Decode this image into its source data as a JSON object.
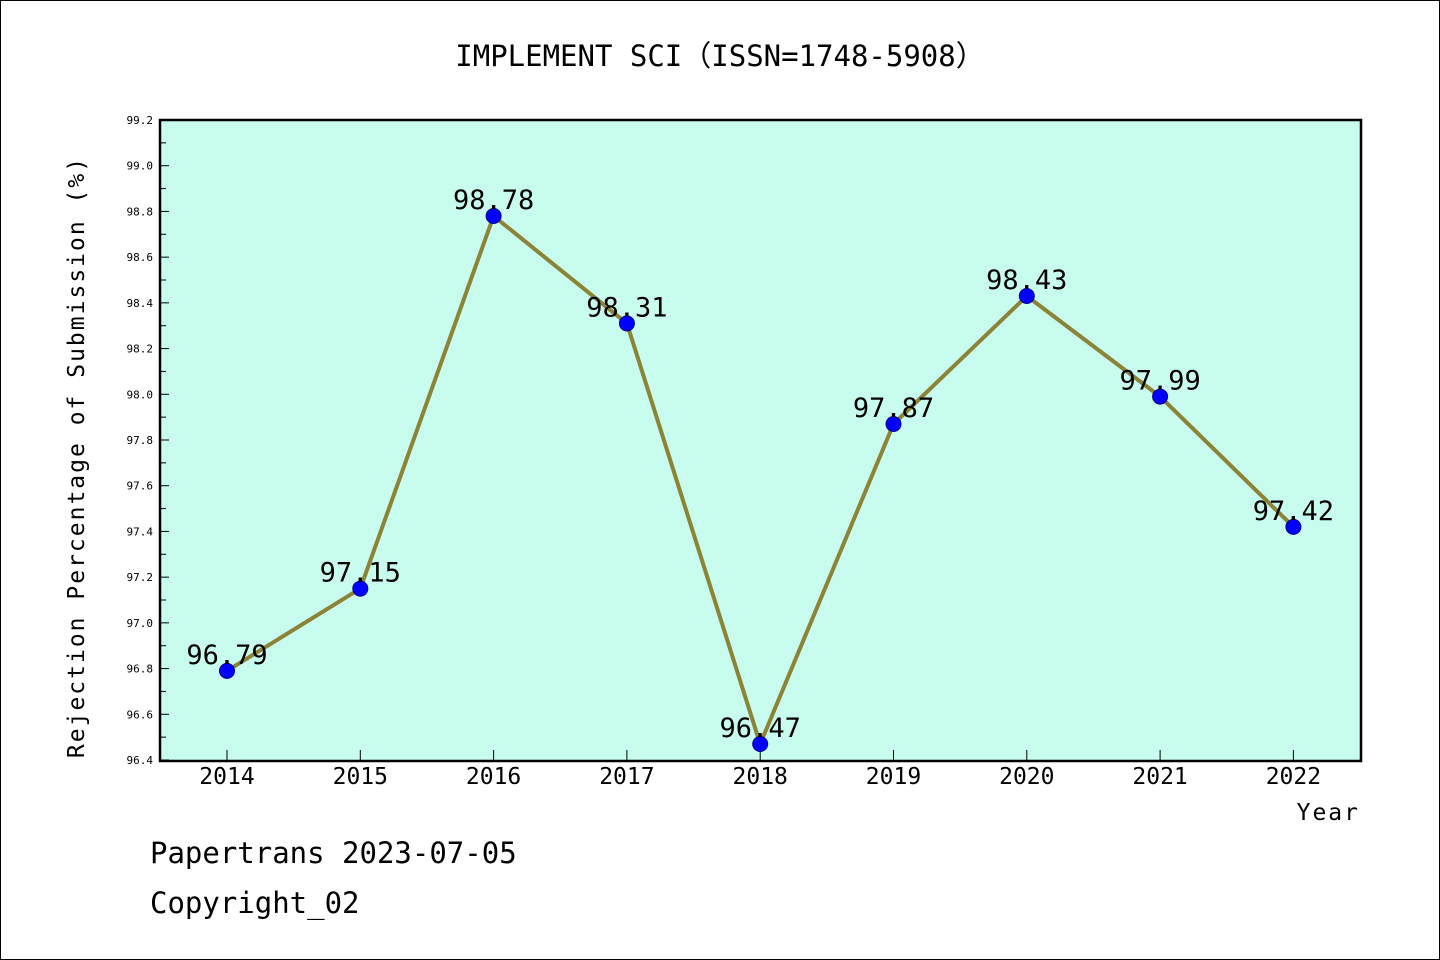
{
  "chart_data": {
    "type": "line",
    "title": "IMPLEMENT SCI（ISSN=1748-5908）",
    "xlabel": "Year",
    "ylabel": "Rejection Percentage of Submission (%)",
    "categories": [
      "2014",
      "2015",
      "2016",
      "2017",
      "2018",
      "2019",
      "2020",
      "2021",
      "2022"
    ],
    "values": [
      96.79,
      97.15,
      98.78,
      98.31,
      96.47,
      97.87,
      98.43,
      97.99,
      97.42
    ],
    "data_labels": [
      "96.79",
      "97.15",
      "98.78",
      "98.31",
      "96.47",
      "97.87",
      "98.43",
      "97.99",
      "97.42"
    ],
    "ylim": [
      96.4,
      99.2
    ],
    "yticks": [
      "96.4",
      "96.6",
      "96.8",
      "97.0",
      "97.2",
      "97.4",
      "97.6",
      "97.8",
      "98.0",
      "98.2",
      "98.4",
      "98.6",
      "98.8",
      "99.0",
      "99.2"
    ],
    "grid": false,
    "colors": {
      "plot_background": "#c8fcee",
      "line": "#8b8336",
      "marker": "#0000ff",
      "axes": "#000000"
    }
  },
  "footer": {
    "line1": "Papertrans 2023-07-05",
    "line2": "Copyright_02"
  }
}
